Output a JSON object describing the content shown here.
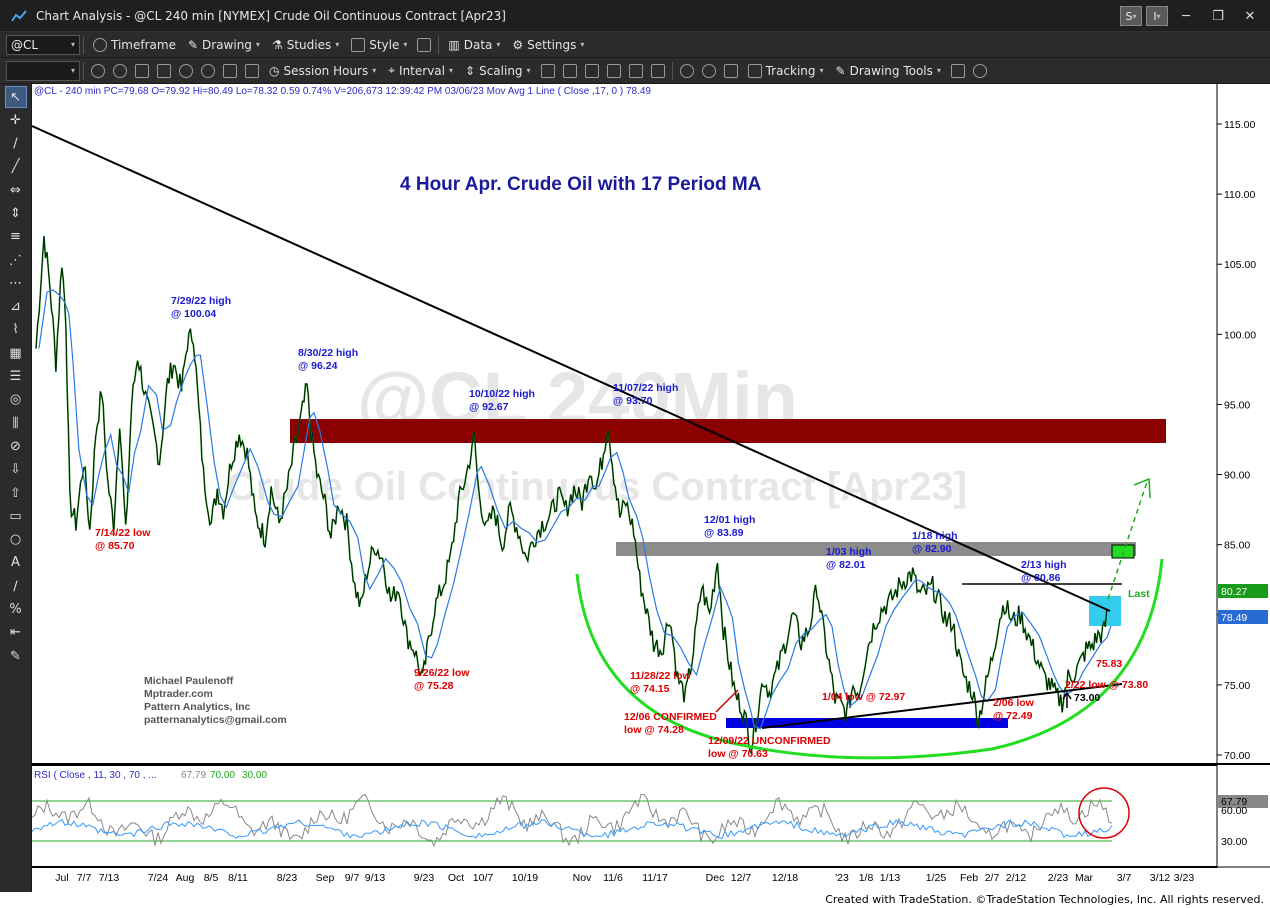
{
  "window": {
    "title": "Chart Analysis - @CL 240 min [NYMEX] Crude Oil Continuous Contract [Apr23]",
    "btn_s": "S",
    "btn_i": "I"
  },
  "toolbar1": {
    "symbol": "@CL",
    "timeframe": "Timeframe",
    "drawing": "Drawing",
    "studies": "Studies",
    "style": "Style",
    "data": "Data",
    "settings": "Settings"
  },
  "toolbar2": {
    "session": "Session Hours",
    "interval": "Interval",
    "scaling": "Scaling",
    "tracking": "Tracking",
    "drawing_tools": "Drawing Tools"
  },
  "chart_data": {
    "type": "line",
    "title": "4 Hour Apr. Crude Oil with 17 Period MA",
    "header": "@CL - 240 min  PC=79.68  O=79.92  Hi=80.49  Lo=78.32  0.59  0.74%  V=206,673  12:39:42 PM  03/06/23  Mov Avg 1 Line (  Close ,17,  0 )   78.49",
    "watermark1": "@CL 240Min",
    "watermark2": "Crude Oil Continuous Contract [Apr23]",
    "y_ticks": [
      "115.00",
      "110.00",
      "105.00",
      "100.00",
      "95.00",
      "90.00",
      "85.00",
      "80.00",
      "75.00",
      "70.00"
    ],
    "ylim": [
      67,
      117
    ],
    "last_price": "80.27",
    "ma_price": "78.49",
    "last_label": "Last",
    "x_ticks": [
      "Jul",
      "7/7",
      "7/13",
      "7/24",
      "Aug",
      "8/5",
      "8/11",
      "8/23",
      "Sep",
      "9/7",
      "9/13",
      "9/23",
      "Oct",
      "10/7",
      "10/19",
      "Nov",
      "11/6",
      "11/17",
      "Dec",
      "12/7",
      "12/18",
      "'23",
      "1/8",
      "1/13",
      "1/25",
      "Feb",
      "2/7",
      "2/12",
      "2/23",
      "Mar",
      "3/7",
      "3/12",
      "3/23"
    ],
    "price_path": [
      [
        0,
        99.0
      ],
      [
        8,
        107.0
      ],
      [
        14,
        103.5
      ],
      [
        20,
        98.0
      ],
      [
        26,
        105.3
      ],
      [
        30,
        101
      ],
      [
        34,
        88
      ],
      [
        40,
        86.5
      ],
      [
        48,
        91
      ],
      [
        54,
        86
      ],
      [
        60,
        93
      ],
      [
        66,
        96
      ],
      [
        72,
        89.5
      ],
      [
        78,
        86.4
      ],
      [
        84,
        94
      ],
      [
        90,
        85.7
      ],
      [
        96,
        95
      ],
      [
        102,
        98.5
      ],
      [
        110,
        95.5
      ],
      [
        118,
        93
      ],
      [
        124,
        91
      ],
      [
        132,
        96.5
      ],
      [
        138,
        98
      ],
      [
        146,
        96
      ],
      [
        152,
        99.5
      ],
      [
        158,
        100.04
      ],
      [
        162,
        96
      ],
      [
        168,
        90
      ],
      [
        176,
        86.5
      ],
      [
        182,
        89
      ],
      [
        188,
        87.5
      ],
      [
        196,
        91
      ],
      [
        204,
        93
      ],
      [
        212,
        91.5
      ],
      [
        220,
        87
      ],
      [
        230,
        85.5
      ],
      [
        236,
        89
      ],
      [
        244,
        86.5
      ],
      [
        252,
        89
      ],
      [
        260,
        92
      ],
      [
        266,
        94
      ],
      [
        272,
        96.24
      ],
      [
        276,
        93
      ],
      [
        282,
        90
      ],
      [
        290,
        88
      ],
      [
        296,
        85.5
      ],
      [
        304,
        88
      ],
      [
        312,
        86.5
      ],
      [
        320,
        82
      ],
      [
        326,
        80.5
      ],
      [
        332,
        83
      ],
      [
        340,
        85
      ],
      [
        348,
        84
      ],
      [
        356,
        81
      ],
      [
        364,
        82
      ],
      [
        372,
        78.5
      ],
      [
        380,
        77.5
      ],
      [
        388,
        75.28
      ],
      [
        394,
        78
      ],
      [
        400,
        80.5
      ],
      [
        408,
        82
      ],
      [
        416,
        84
      ],
      [
        424,
        88
      ],
      [
        432,
        90
      ],
      [
        440,
        92.67
      ],
      [
        444,
        89
      ],
      [
        452,
        86
      ],
      [
        460,
        87.5
      ],
      [
        468,
        85
      ],
      [
        476,
        87.5
      ],
      [
        484,
        86
      ],
      [
        492,
        84
      ],
      [
        500,
        85.5
      ],
      [
        508,
        86.5
      ],
      [
        516,
        87
      ],
      [
        524,
        88.5
      ],
      [
        532,
        87.5
      ],
      [
        540,
        89
      ],
      [
        548,
        88
      ],
      [
        556,
        90.5
      ],
      [
        562,
        89
      ],
      [
        568,
        91
      ],
      [
        574,
        93.7
      ],
      [
        580,
        90
      ],
      [
        586,
        87
      ],
      [
        592,
        88
      ],
      [
        600,
        86
      ],
      [
        606,
        82.5
      ],
      [
        612,
        80.5
      ],
      [
        620,
        78
      ],
      [
        628,
        77.5
      ],
      [
        636,
        80
      ],
      [
        644,
        75.5
      ],
      [
        652,
        74.15
      ],
      [
        660,
        77.5
      ],
      [
        668,
        82
      ],
      [
        676,
        80
      ],
      [
        684,
        83.89
      ],
      [
        690,
        79
      ],
      [
        696,
        76.5
      ],
      [
        702,
        74.28
      ],
      [
        708,
        73.5
      ],
      [
        714,
        72
      ],
      [
        718,
        70.63
      ],
      [
        724,
        73
      ],
      [
        730,
        75.5
      ],
      [
        736,
        74.5
      ],
      [
        744,
        76
      ],
      [
        752,
        78
      ],
      [
        760,
        80
      ],
      [
        768,
        78
      ],
      [
        776,
        79
      ],
      [
        784,
        82.01
      ],
      [
        790,
        79
      ],
      [
        796,
        76.5
      ],
      [
        802,
        74
      ],
      [
        808,
        73.5
      ],
      [
        814,
        72.97
      ],
      [
        820,
        75
      ],
      [
        826,
        74.5
      ],
      [
        834,
        77.5
      ],
      [
        842,
        79.5
      ],
      [
        850,
        80.5
      ],
      [
        858,
        81
      ],
      [
        866,
        82
      ],
      [
        874,
        82.7
      ],
      [
        880,
        82.9
      ],
      [
        886,
        81.5
      ],
      [
        892,
        81.5
      ],
      [
        900,
        82
      ],
      [
        906,
        81
      ],
      [
        914,
        79.5
      ],
      [
        920,
        79.5
      ],
      [
        926,
        77
      ],
      [
        932,
        75.5
      ],
      [
        940,
        74.5
      ],
      [
        946,
        72.49
      ],
      [
        952,
        74.5
      ],
      [
        960,
        77
      ],
      [
        966,
        79.5
      ],
      [
        972,
        80.86
      ],
      [
        980,
        79.5
      ],
      [
        988,
        80
      ],
      [
        996,
        78.5
      ],
      [
        1004,
        77
      ],
      [
        1012,
        75.5
      ],
      [
        1018,
        75
      ],
      [
        1024,
        74.2
      ],
      [
        1030,
        73.8
      ],
      [
        1036,
        75.5
      ],
      [
        1042,
        75.8
      ],
      [
        1048,
        76.5
      ],
      [
        1054,
        77.5
      ],
      [
        1060,
        77.8
      ],
      [
        1066,
        78.5
      ],
      [
        1072,
        78.8
      ],
      [
        1076,
        80.3
      ]
    ],
    "annotations": [
      {
        "text": "7/29/22 high",
        "c": "blue"
      },
      {
        "text": "@ 100.04",
        "c": "blue"
      },
      {
        "text": "8/30/22 high",
        "c": "blue"
      },
      {
        "text": "@ 96.24",
        "c": "blue"
      },
      {
        "text": "10/10/22 high",
        "c": "blue"
      },
      {
        "text": "@ 92.67",
        "c": "blue"
      },
      {
        "text": "11/07/22 high",
        "c": "blue"
      },
      {
        "text": "@ 93.70",
        "c": "blue"
      },
      {
        "text": "12/01 high",
        "c": "blue"
      },
      {
        "text": "@ 83.89",
        "c": "blue"
      },
      {
        "text": "1/03 high",
        "c": "blue"
      },
      {
        "text": "@ 82.01",
        "c": "blue"
      },
      {
        "text": "1/18 high",
        "c": "blue"
      },
      {
        "text": "@ 82.90",
        "c": "blue"
      },
      {
        "text": "2/13 high",
        "c": "blue"
      },
      {
        "text": "@ 80.86",
        "c": "blue"
      },
      {
        "text": "7/14/22 low",
        "c": "red"
      },
      {
        "text": "@ 85.70",
        "c": "red"
      },
      {
        "text": "9/26/22 low",
        "c": "red"
      },
      {
        "text": "@ 75.28",
        "c": "red"
      },
      {
        "text": "11/28/22 low",
        "c": "red"
      },
      {
        "text": "@ 74.15",
        "c": "red"
      },
      {
        "text": "12/06 CONFIRMED",
        "c": "red"
      },
      {
        "text": "low @ 74.28",
        "c": "red"
      },
      {
        "text": "12/09/22 UNCONFIRMED",
        "c": "red"
      },
      {
        "text": "low @ 70.63",
        "c": "red"
      },
      {
        "text": "1/04 low @ 72.97",
        "c": "red"
      },
      {
        "text": "2/06 low",
        "c": "red"
      },
      {
        "text": "@ 72.49",
        "c": "red"
      },
      {
        "text": "2/22 low @ 73.80",
        "c": "red"
      },
      {
        "text": "75.83",
        "c": "red"
      },
      {
        "text": "73.00",
        "c": "black"
      }
    ],
    "credits": [
      "Michael Paulenoff",
      "Mptrader.com",
      "Pattern Analytics, Inc",
      "patternanalytics@gmail.com"
    ]
  },
  "rsi": {
    "label": "RSI ( Close , 11,  30 ,  70 , ... ",
    "v1": "67.79",
    "v2": "70.00",
    "v3": "30.00",
    "axis_last": "67.79",
    "axis60": "60.00",
    "axis30": "30.00"
  },
  "status_text": "Created with TradeStation. ©TradeStation Technologies, Inc. All rights reserved."
}
